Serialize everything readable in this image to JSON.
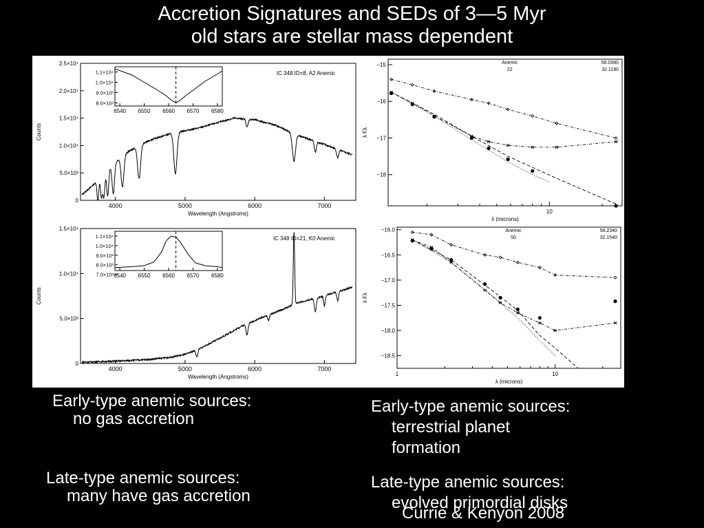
{
  "title": {
    "line1": "Accretion Signatures and SEDs of 3—5 Myr",
    "line2": "old stars are stellar mass dependent"
  },
  "captions": {
    "left_early_1": "Early-type anemic sources:",
    "left_early_2": "no gas accretion",
    "left_late_1": "Late-type anemic sources:",
    "left_late_2": "many have gas accretion",
    "right_early_1": "Early-type anemic sources:",
    "right_early_2": "terrestrial planet",
    "right_early_3": "formation",
    "right_late_1": "Late-type anemic sources:",
    "right_late_2": "evolved primordial disks",
    "credit": "Currie & Kenyon 2008"
  },
  "chart_data": [
    {
      "type": "line",
      "label": "IC 348 ID=8, A2 Anemic",
      "xlabel": "Wavelength (Angstroms)",
      "ylabel": "Counts",
      "xlim": [
        3500,
        7450
      ],
      "ylim": [
        0,
        25000
      ],
      "xticks": [
        4000,
        5000,
        6000,
        7000
      ],
      "yticks": [
        {
          "v": 0,
          "t": "0"
        },
        {
          "v": 5000,
          "t": "5.0×10³"
        },
        {
          "v": 10000,
          "t": "1.0×10⁴"
        },
        {
          "v": 15000,
          "t": "1.5×10⁴"
        },
        {
          "v": 20000,
          "t": "2.0×10⁴"
        },
        {
          "v": 25000,
          "t": "2.5×10⁴"
        }
      ],
      "continuum": [
        [
          3520,
          1000
        ],
        [
          3700,
          3000
        ],
        [
          3900,
          6000
        ],
        [
          4200,
          9000
        ],
        [
          4500,
          11000
        ],
        [
          4800,
          12200
        ],
        [
          5200,
          13200
        ],
        [
          5500,
          14300
        ],
        [
          5700,
          15000
        ],
        [
          6000,
          14700
        ],
        [
          6300,
          13700
        ],
        [
          6500,
          12500
        ],
        [
          6700,
          11500
        ],
        [
          7000,
          10200
        ],
        [
          7200,
          9200
        ],
        [
          7400,
          8300
        ]
      ],
      "lines": [
        [
          3750,
          4000,
          18
        ],
        [
          3800,
          4000,
          18
        ],
        [
          3835,
          4500,
          20
        ],
        [
          3890,
          5000,
          22
        ],
        [
          3970,
          5500,
          25
        ],
        [
          4102,
          5500,
          28
        ],
        [
          4340,
          6000,
          30
        ],
        [
          4861,
          7500,
          32
        ],
        [
          5890,
          1500,
          20
        ],
        [
          6563,
          5000,
          32
        ],
        [
          6870,
          2000,
          20
        ],
        [
          7190,
          1500,
          20
        ]
      ],
      "inset": {
        "xlim": [
          6538,
          6582
        ],
        "ylim": [
          7700,
          11500
        ],
        "xticks": [
          6540,
          6550,
          6560,
          6570,
          6580
        ],
        "yticks": [
          {
            "v": 8000,
            "t": "8.0×10³"
          },
          {
            "v": 9000,
            "t": "9.0×10³"
          },
          {
            "v": 10000,
            "t": "1.0×10⁴"
          },
          {
            "v": 11000,
            "t": "1.1×10⁴"
          }
        ],
        "marker": 6563,
        "profile": [
          [
            6538,
            11300
          ],
          [
            6545,
            10700
          ],
          [
            6550,
            10000
          ],
          [
            6555,
            9300
          ],
          [
            6559,
            8700
          ],
          [
            6561,
            8300
          ],
          [
            6563,
            8000
          ],
          [
            6565,
            8300
          ],
          [
            6567,
            8700
          ],
          [
            6571,
            9400
          ],
          [
            6575,
            10100
          ],
          [
            6580,
            10800
          ],
          [
            6582,
            11100
          ]
        ]
      }
    },
    {
      "type": "line",
      "label": "IC 348 ID=21, K0 Anemic",
      "xlabel": "Wavelength (Angstroms)",
      "ylabel": "Counts",
      "xlim": [
        3500,
        7450
      ],
      "ylim": [
        0,
        15000
      ],
      "xticks": [
        4000,
        5000,
        6000,
        7000
      ],
      "yticks": [
        {
          "v": 0,
          "t": "0"
        },
        {
          "v": 5000,
          "t": "5.0×10³"
        },
        {
          "v": 10000,
          "t": "1.0×10⁴"
        },
        {
          "v": 15000,
          "t": "1.5×10⁴"
        }
      ],
      "continuum": [
        [
          3520,
          150
        ],
        [
          4000,
          250
        ],
        [
          4500,
          450
        ],
        [
          4800,
          700
        ],
        [
          5000,
          1000
        ],
        [
          5200,
          1600
        ],
        [
          5500,
          2800
        ],
        [
          5800,
          4100
        ],
        [
          6100,
          5100
        ],
        [
          6400,
          6000
        ],
        [
          6600,
          6700
        ],
        [
          6900,
          7300
        ],
        [
          7200,
          8000
        ],
        [
          7400,
          8500
        ]
      ],
      "lines": [
        [
          5170,
          800,
          18
        ],
        [
          5890,
          1200,
          20
        ],
        [
          6200,
          600,
          18
        ],
        [
          6563,
          -8000,
          14
        ],
        [
          6870,
          1500,
          20
        ],
        [
          7000,
          1200,
          16
        ],
        [
          7190,
          1000,
          18
        ]
      ],
      "inset": {
        "xlim": [
          6538,
          6582
        ],
        "ylim": [
          7400,
          11500
        ],
        "xticks": [
          6540,
          6550,
          6560,
          6570,
          6580
        ],
        "yticks": [
          {
            "v": 7000,
            "t": "7.0×10³"
          },
          {
            "v": 8000,
            "t": "8.0×10³"
          },
          {
            "v": 9000,
            "t": "9.0×10³"
          },
          {
            "v": 10000,
            "t": "1.0×10⁴"
          },
          {
            "v": 11000,
            "t": "1.1×10⁴"
          }
        ],
        "marker": 6563,
        "profile": [
          [
            6538,
            7700
          ],
          [
            6545,
            7800
          ],
          [
            6550,
            7900
          ],
          [
            6554,
            8300
          ],
          [
            6557,
            9300
          ],
          [
            6559,
            10500
          ],
          [
            6561,
            11000
          ],
          [
            6563,
            10900
          ],
          [
            6565,
            10300
          ],
          [
            6568,
            9100
          ],
          [
            6571,
            8200
          ],
          [
            6575,
            7900
          ],
          [
            6580,
            7800
          ],
          [
            6582,
            7700
          ]
        ]
      }
    },
    {
      "type": "line",
      "legend_text": [
        [
          "Anemic",
          "56.0380"
        ],
        [
          "22",
          "32.1190"
        ]
      ],
      "xlabel": "λ (microns)",
      "ylabel": "λ Fλ",
      "xscale": "log",
      "xlim": [
        1.2,
        26
      ],
      "ylim": [
        -18.85,
        -14.85
      ],
      "xticks": [
        {
          "v": 10,
          "t": "10"
        }
      ],
      "yticks": [
        {
          "v": -15,
          "t": "−15"
        },
        {
          "v": -16,
          "t": "−16"
        },
        {
          "v": -17,
          "t": "−17"
        },
        {
          "v": -18,
          "t": "−18"
        }
      ],
      "series": [
        {
          "style": "diamond-dashdot",
          "values": [
            [
              1.25,
              -15.4
            ],
            [
              1.65,
              -15.55
            ],
            [
              2.2,
              -15.72
            ],
            [
              3.6,
              -15.95
            ],
            [
              4.5,
              -16.05
            ],
            [
              5.8,
              -16.22
            ],
            [
              8.0,
              -16.4
            ],
            [
              11,
              -16.6
            ],
            [
              24,
              -17.0
            ]
          ]
        },
        {
          "style": "star-dashdot",
          "values": [
            [
              1.25,
              -15.75
            ],
            [
              1.65,
              -16.05
            ],
            [
              2.2,
              -16.4
            ],
            [
              3.6,
              -16.95
            ],
            [
              4.5,
              -17.1
            ],
            [
              5.8,
              -17.2
            ],
            [
              8.0,
              -17.25
            ],
            [
              11,
              -17.25
            ],
            [
              24,
              -17.1
            ]
          ]
        },
        {
          "style": "dashed",
          "values": [
            [
              1.25,
              -15.75
            ],
            [
              2.2,
              -16.35
            ],
            [
              3.6,
              -16.95
            ],
            [
              5.8,
              -17.5
            ],
            [
              8.0,
              -17.8
            ],
            [
              11,
              -18.1
            ],
            [
              24,
              -18.8
            ]
          ]
        },
        {
          "style": "dotted",
          "values": [
            [
              1.25,
              -15.75
            ],
            [
              2.2,
              -16.4
            ],
            [
              3.6,
              -17.05
            ],
            [
              5.8,
              -17.65
            ],
            [
              8.0,
              -18.0
            ],
            [
              10,
              -18.2
            ]
          ]
        },
        {
          "style": "dots",
          "values": [
            [
              1.25,
              -15.78
            ],
            [
              1.65,
              -16.08
            ],
            [
              2.2,
              -16.42
            ],
            [
              3.6,
              -17.0
            ],
            [
              4.5,
              -17.28
            ],
            [
              5.8,
              -17.58
            ],
            [
              8.0,
              -17.9
            ],
            [
              24,
              -18.85
            ]
          ]
        }
      ]
    },
    {
      "type": "line",
      "legend_text": [
        [
          "Anemic",
          "56.2340"
        ],
        [
          "50",
          "32.1540"
        ]
      ],
      "xlabel": "λ (microns)",
      "ylabel": "λ Fλ",
      "xscale": "log",
      "xlim": [
        1.0,
        26
      ],
      "ylim": [
        -18.75,
        -15.95
      ],
      "xticks": [
        {
          "v": 1,
          "t": "1"
        },
        {
          "v": 10,
          "t": "10"
        }
      ],
      "yticks": [
        {
          "v": -16,
          "t": "−16.0"
        },
        {
          "v": -16.5,
          "t": "−16.5"
        },
        {
          "v": -17,
          "t": "−17.0"
        },
        {
          "v": -17.5,
          "t": "−17.5"
        },
        {
          "v": -18,
          "t": "−18.0"
        },
        {
          "v": -18.5,
          "t": "−18.5"
        }
      ],
      "series": [
        {
          "style": "diamond-dashdot",
          "values": [
            [
              1.25,
              -16.05
            ],
            [
              1.65,
              -16.1
            ],
            [
              2.2,
              -16.3
            ],
            [
              3.6,
              -16.5
            ],
            [
              4.5,
              -16.55
            ],
            [
              5.8,
              -16.65
            ],
            [
              8.0,
              -16.75
            ],
            [
              10,
              -16.9
            ],
            [
              24,
              -16.95
            ]
          ]
        },
        {
          "style": "star-dashdot",
          "values": [
            [
              1.25,
              -16.2
            ],
            [
              1.65,
              -16.35
            ],
            [
              2.2,
              -16.65
            ],
            [
              3.6,
              -17.2
            ],
            [
              4.5,
              -17.45
            ],
            [
              5.8,
              -17.65
            ],
            [
              8.0,
              -17.85
            ],
            [
              10,
              -18.0
            ],
            [
              24,
              -17.85
            ]
          ]
        },
        {
          "style": "dashed",
          "values": [
            [
              1.25,
              -16.2
            ],
            [
              2.2,
              -16.6
            ],
            [
              3.6,
              -17.1
            ],
            [
              5.8,
              -17.6
            ],
            [
              8.0,
              -18.1
            ],
            [
              10,
              -18.35
            ],
            [
              14,
              -18.75
            ]
          ]
        },
        {
          "style": "dotted",
          "values": [
            [
              1.25,
              -16.2
            ],
            [
              2.2,
              -16.65
            ],
            [
              3.6,
              -17.2
            ],
            [
              5.8,
              -17.75
            ],
            [
              8.0,
              -18.2
            ],
            [
              10,
              -18.5
            ]
          ]
        },
        {
          "style": "dots",
          "values": [
            [
              1.25,
              -16.22
            ],
            [
              1.65,
              -16.38
            ],
            [
              2.2,
              -16.6
            ],
            [
              3.6,
              -17.08
            ],
            [
              4.5,
              -17.35
            ],
            [
              5.8,
              -17.58
            ],
            [
              8.0,
              -17.75
            ],
            [
              24,
              -17.42
            ]
          ]
        }
      ]
    }
  ]
}
